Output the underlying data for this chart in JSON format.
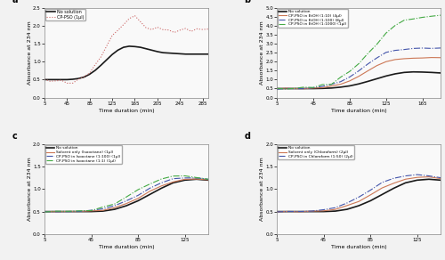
{
  "fig_background": "#f0f0f0",
  "panel_a": {
    "title": "a",
    "xlabel": "Time duration (min)",
    "ylabel": "Absorbance at 234 nm",
    "xlim": [
      5,
      295
    ],
    "ylim": [
      0,
      2.5
    ],
    "xticks": [
      5,
      45,
      85,
      125,
      165,
      205,
      245,
      285
    ],
    "yticks": [
      0,
      0.5,
      1.0,
      1.5,
      2.0,
      2.5
    ],
    "series": [
      {
        "label": "No solution",
        "color": "#1a1a1a",
        "linestyle": "-",
        "linewidth": 1.2,
        "noise": 0.0,
        "x": [
          5,
          15,
          25,
          35,
          45,
          55,
          65,
          75,
          85,
          95,
          105,
          115,
          125,
          135,
          145,
          155,
          165,
          175,
          185,
          195,
          205,
          215,
          225,
          235,
          245,
          255,
          265,
          275,
          285,
          295
        ],
        "y": [
          0.5,
          0.5,
          0.5,
          0.5,
          0.5,
          0.51,
          0.53,
          0.57,
          0.65,
          0.76,
          0.9,
          1.05,
          1.2,
          1.32,
          1.4,
          1.43,
          1.42,
          1.4,
          1.36,
          1.32,
          1.28,
          1.25,
          1.24,
          1.23,
          1.22,
          1.21,
          1.21,
          1.21,
          1.21,
          1.21
        ]
      },
      {
        "label": "CP-PSO (1μl)",
        "color": "#cc6666",
        "linestyle": ":",
        "linewidth": 0.8,
        "noise": 0.04,
        "x": [
          5,
          15,
          25,
          35,
          45,
          55,
          65,
          75,
          85,
          95,
          105,
          115,
          125,
          135,
          145,
          155,
          165,
          175,
          185,
          195,
          205,
          215,
          225,
          235,
          245,
          255,
          265,
          275,
          285,
          295
        ],
        "y": [
          0.49,
          0.46,
          0.44,
          0.42,
          0.41,
          0.41,
          0.45,
          0.55,
          0.7,
          0.9,
          1.15,
          1.45,
          1.72,
          1.95,
          2.1,
          2.22,
          2.32,
          2.1,
          1.98,
          1.95,
          1.9,
          1.9,
          1.88,
          1.87,
          1.9,
          1.92,
          1.89,
          1.9,
          1.92,
          1.92
        ]
      }
    ]
  },
  "panel_b": {
    "title": "b",
    "xlabel": "Time duration (min)",
    "ylabel": "Absorbance at 234 nm",
    "xlim": [
      5,
      185
    ],
    "ylim": [
      0,
      5
    ],
    "xticks": [
      5,
      45,
      85,
      125,
      165
    ],
    "yticks": [
      0,
      0.5,
      1.0,
      1.5,
      2.0,
      2.5,
      3.0,
      3.5,
      4.0,
      4.5,
      5.0
    ],
    "series": [
      {
        "label": "No solution",
        "color": "#1a1a1a",
        "linestyle": "-",
        "linewidth": 1.2,
        "noise": 0.0,
        "x": [
          5,
          15,
          25,
          35,
          45,
          55,
          65,
          75,
          85,
          95,
          105,
          115,
          125,
          135,
          145,
          155,
          165,
          175,
          185
        ],
        "y": [
          0.5,
          0.5,
          0.5,
          0.5,
          0.5,
          0.51,
          0.53,
          0.58,
          0.65,
          0.76,
          0.9,
          1.05,
          1.2,
          1.32,
          1.4,
          1.43,
          1.42,
          1.4,
          1.37
        ]
      },
      {
        "label": "CP-PSO in EtOH (1:10) (4μl)",
        "color": "#cc7755",
        "linestyle": "-",
        "linewidth": 0.8,
        "noise": 0.01,
        "x": [
          5,
          15,
          25,
          35,
          45,
          55,
          65,
          75,
          85,
          95,
          105,
          115,
          125,
          135,
          145,
          155,
          165,
          175,
          185
        ],
        "y": [
          0.5,
          0.5,
          0.5,
          0.5,
          0.52,
          0.56,
          0.64,
          0.76,
          0.94,
          1.18,
          1.48,
          1.78,
          2.0,
          2.12,
          2.18,
          2.2,
          2.21,
          2.22,
          2.22
        ]
      },
      {
        "label": "CP-PSO in EtOH (1:100) (8μl)",
        "color": "#4455aa",
        "linestyle": "-.",
        "linewidth": 0.8,
        "noise": 0.02,
        "x": [
          5,
          15,
          25,
          35,
          45,
          55,
          65,
          75,
          85,
          95,
          105,
          115,
          125,
          135,
          145,
          155,
          165,
          175,
          185
        ],
        "y": [
          0.5,
          0.5,
          0.5,
          0.51,
          0.54,
          0.6,
          0.72,
          0.9,
          1.15,
          1.48,
          1.85,
          2.22,
          2.52,
          2.65,
          2.7,
          2.72,
          2.73,
          2.74,
          2.74
        ]
      },
      {
        "label": "CP-PSO in EtOH (1:1000) (1μl)",
        "color": "#44aa44",
        "linestyle": "-.",
        "linewidth": 0.8,
        "noise": 0.04,
        "x": [
          5,
          15,
          25,
          35,
          45,
          55,
          65,
          75,
          85,
          95,
          105,
          115,
          125,
          135,
          145,
          155,
          165,
          175,
          185
        ],
        "y": [
          0.5,
          0.5,
          0.5,
          0.52,
          0.56,
          0.66,
          0.84,
          1.1,
          1.45,
          1.9,
          2.45,
          3.05,
          3.6,
          4.0,
          4.25,
          4.4,
          4.5,
          4.55,
          4.55
        ]
      }
    ]
  },
  "panel_c": {
    "title": "c",
    "xlabel": "Time duration (min)",
    "ylabel": "Absorbance at 234 nm",
    "xlim": [
      5,
      145
    ],
    "ylim": [
      0,
      2.0
    ],
    "xticks": [
      5,
      45,
      85,
      125
    ],
    "yticks": [
      0,
      0.5,
      1.0,
      1.5,
      2.0
    ],
    "series": [
      {
        "label": "No solution",
        "color": "#1a1a1a",
        "linestyle": "-",
        "linewidth": 1.2,
        "noise": 0.0,
        "x": [
          5,
          15,
          25,
          35,
          45,
          55,
          65,
          75,
          85,
          95,
          105,
          115,
          125,
          135,
          145
        ],
        "y": [
          0.5,
          0.5,
          0.5,
          0.5,
          0.5,
          0.51,
          0.55,
          0.63,
          0.74,
          0.88,
          1.02,
          1.14,
          1.2,
          1.22,
          1.2
        ]
      },
      {
        "label": "Solvent only (Isooctane) (1μl)",
        "color": "#cc7755",
        "linestyle": "-",
        "linewidth": 0.8,
        "noise": 0.005,
        "x": [
          5,
          15,
          25,
          35,
          45,
          55,
          65,
          75,
          85,
          95,
          105,
          115,
          125,
          135,
          145
        ],
        "y": [
          0.5,
          0.5,
          0.5,
          0.5,
          0.51,
          0.53,
          0.59,
          0.68,
          0.8,
          0.95,
          1.07,
          1.16,
          1.22,
          1.23,
          1.21
        ]
      },
      {
        "label": "CP-PSO in Isooctane (1:100) (1μl)",
        "color": "#4455aa",
        "linestyle": "-.",
        "linewidth": 0.8,
        "noise": 0.005,
        "x": [
          5,
          15,
          25,
          35,
          45,
          55,
          65,
          75,
          85,
          95,
          105,
          115,
          125,
          135,
          145
        ],
        "y": [
          0.5,
          0.5,
          0.5,
          0.5,
          0.52,
          0.56,
          0.63,
          0.74,
          0.87,
          1.02,
          1.14,
          1.22,
          1.25,
          1.25,
          1.22
        ]
      },
      {
        "label": "CP-PSO in Isooctane (1:1) (1μl)",
        "color": "#44aa44",
        "linestyle": "-.",
        "linewidth": 0.8,
        "noise": 0.008,
        "x": [
          5,
          15,
          25,
          35,
          45,
          55,
          65,
          75,
          85,
          95,
          105,
          115,
          125,
          135,
          145
        ],
        "y": [
          0.5,
          0.5,
          0.5,
          0.51,
          0.53,
          0.59,
          0.68,
          0.82,
          0.97,
          1.12,
          1.23,
          1.29,
          1.3,
          1.27,
          1.22
        ]
      }
    ]
  },
  "panel_d": {
    "title": "d",
    "xlabel": "Time duration (min)",
    "ylabel": "Absorbance at 234 nm",
    "xlim": [
      5,
      145
    ],
    "ylim": [
      0,
      2.0
    ],
    "xticks": [
      5,
      45,
      85,
      125
    ],
    "yticks": [
      0,
      0.5,
      1.0,
      1.5,
      2.0
    ],
    "series": [
      {
        "label": "No solution",
        "color": "#1a1a1a",
        "linestyle": "-",
        "linewidth": 1.2,
        "noise": 0.0,
        "x": [
          5,
          15,
          25,
          35,
          45,
          55,
          65,
          75,
          85,
          95,
          105,
          115,
          125,
          135,
          145
        ],
        "y": [
          0.5,
          0.5,
          0.5,
          0.5,
          0.5,
          0.51,
          0.55,
          0.63,
          0.74,
          0.88,
          1.02,
          1.14,
          1.2,
          1.22,
          1.2
        ]
      },
      {
        "label": "Solvent only (Chloroform) (2μl)",
        "color": "#cc7755",
        "linestyle": "-",
        "linewidth": 0.8,
        "noise": 0.005,
        "x": [
          5,
          15,
          25,
          35,
          45,
          55,
          65,
          75,
          85,
          95,
          105,
          115,
          125,
          135,
          145
        ],
        "y": [
          0.5,
          0.5,
          0.5,
          0.5,
          0.52,
          0.55,
          0.63,
          0.73,
          0.87,
          1.02,
          1.14,
          1.22,
          1.26,
          1.27,
          1.24
        ]
      },
      {
        "label": "CP-PSO in Chloroform (1:50) (2μl)",
        "color": "#4455aa",
        "linestyle": "-.",
        "linewidth": 0.8,
        "noise": 0.005,
        "x": [
          5,
          15,
          25,
          35,
          45,
          55,
          65,
          75,
          85,
          95,
          105,
          115,
          125,
          135,
          145
        ],
        "y": [
          0.5,
          0.5,
          0.5,
          0.51,
          0.54,
          0.59,
          0.69,
          0.82,
          0.98,
          1.14,
          1.24,
          1.3,
          1.32,
          1.3,
          1.25
        ]
      }
    ]
  }
}
